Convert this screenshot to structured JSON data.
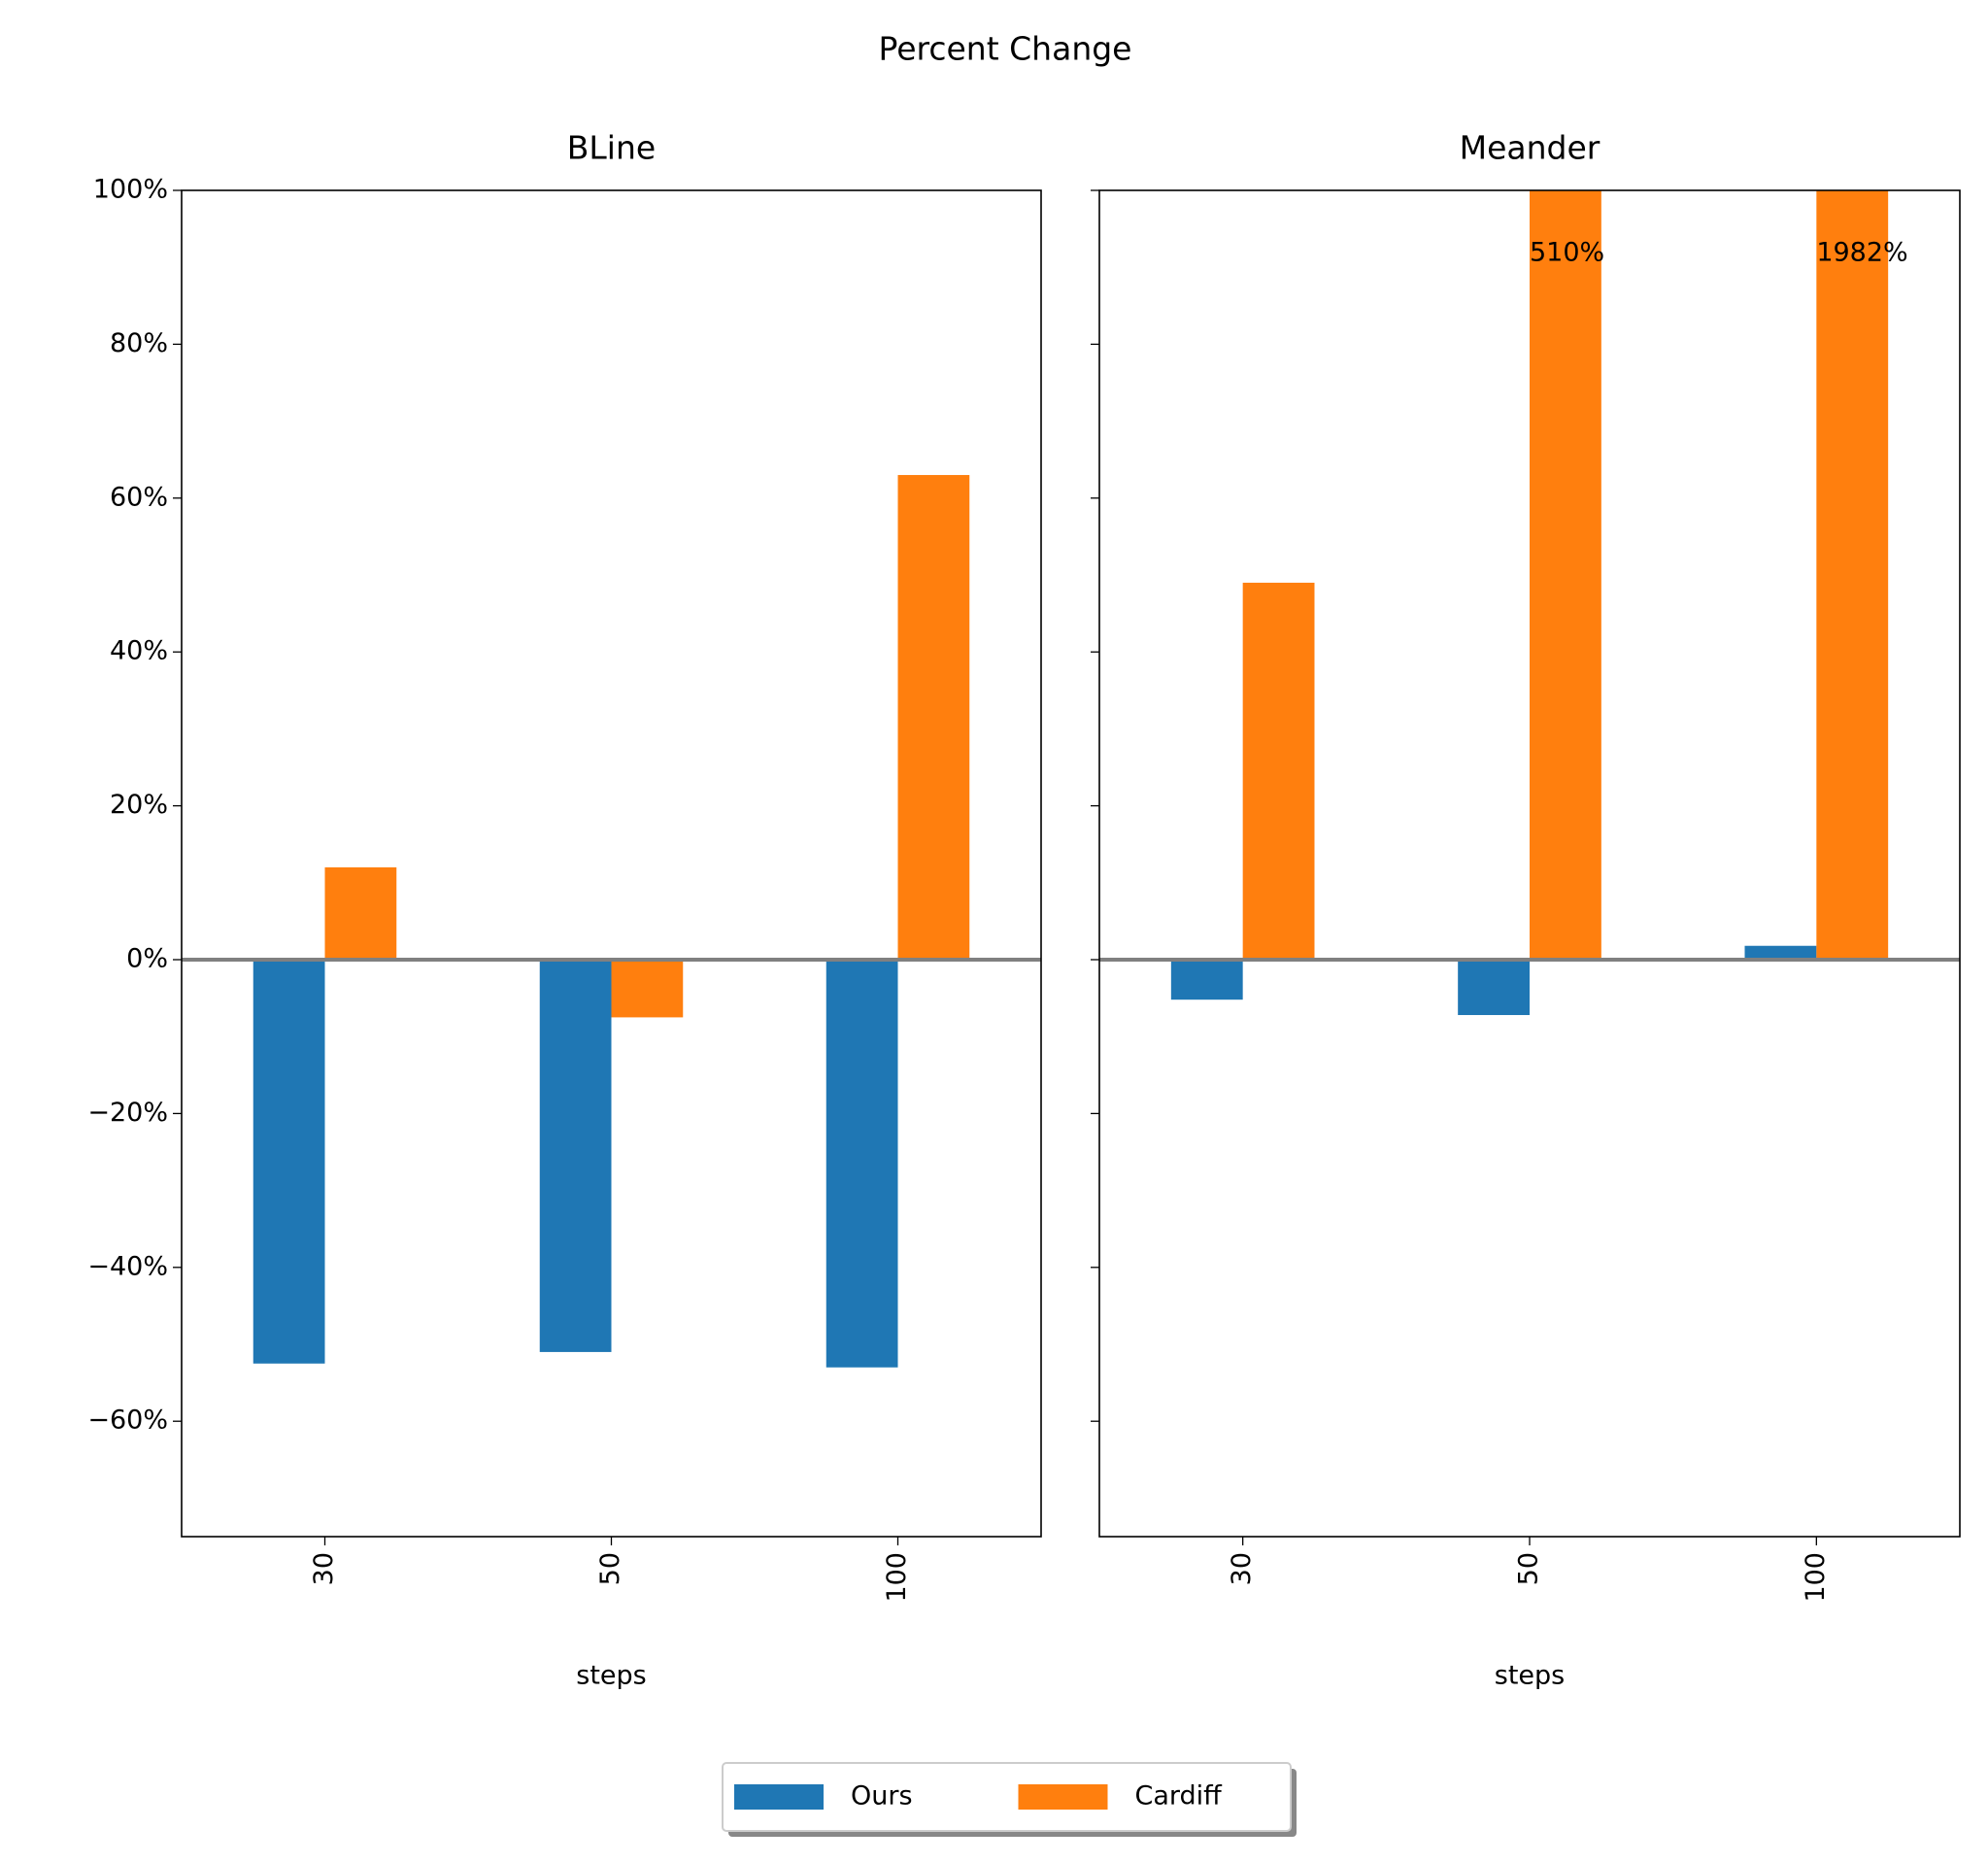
{
  "title": "Percent Change",
  "legend": {
    "position": "lower center",
    "columns": 2,
    "shadow": true
  },
  "chart_data": [
    {
      "type": "bar",
      "title": "BLine",
      "xlabel": "steps",
      "categories": [
        "30",
        "50",
        "100"
      ],
      "series": [
        {
          "name": "Ours",
          "color": "#1f77b4",
          "values": [
            -52.5,
            -51,
            -53
          ]
        },
        {
          "name": "Cardiff",
          "color": "#ff7f0e",
          "values": [
            12,
            -7.5,
            63
          ]
        }
      ],
      "ylim": [
        -75,
        100
      ],
      "yticks": [
        {
          "value": -60,
          "label": "−60%"
        },
        {
          "value": -40,
          "label": "−40%"
        },
        {
          "value": -20,
          "label": "−20%"
        },
        {
          "value": 0,
          "label": "0%"
        },
        {
          "value": 20,
          "label": "20%"
        },
        {
          "value": 40,
          "label": "40%"
        },
        {
          "value": 60,
          "label": "60%"
        },
        {
          "value": 80,
          "label": "80%"
        },
        {
          "value": 100,
          "label": "100%"
        }
      ]
    },
    {
      "type": "bar",
      "title": "Meander",
      "xlabel": "steps",
      "categories": [
        "30",
        "50",
        "100"
      ],
      "series": [
        {
          "color": "#1f77b4",
          "values": [
            -5.2,
            -7.2,
            1.8
          ]
        },
        {
          "color": "#ff7f0e",
          "values": [
            49,
            510,
            1982
          ],
          "value_labels": [
            null,
            "510%",
            "1982%"
          ]
        }
      ],
      "ylim": [
        -75,
        100
      ],
      "yticks": [
        -60,
        -40,
        -20,
        0,
        20,
        40,
        60,
        80,
        100
      ]
    }
  ]
}
